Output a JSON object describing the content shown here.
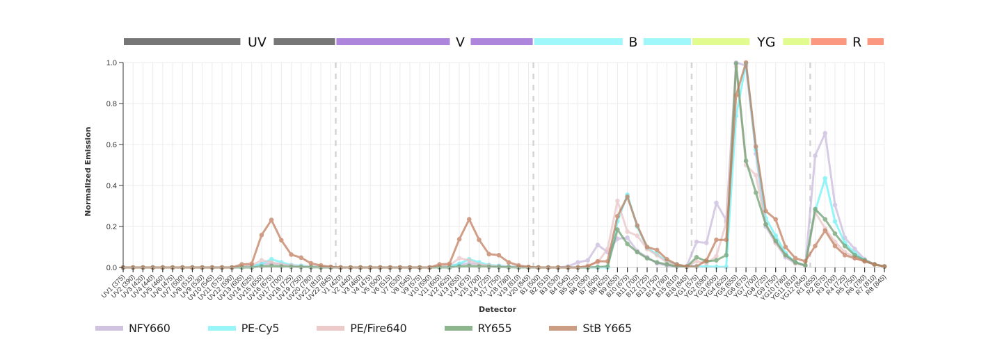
{
  "chart_data": {
    "type": "line",
    "title": "",
    "xlabel": "Detector",
    "ylabel": "Normalized Emission",
    "ylim": [
      0,
      1.0
    ],
    "yticks": [
      "0.0",
      "0.2",
      "0.4",
      "0.6",
      "0.8",
      "1.0"
    ],
    "grid": true,
    "legend_position": "bottom",
    "laser_bands": [
      {
        "label": "UV",
        "color": "#767676",
        "start": 0,
        "end": 21
      },
      {
        "label": "V",
        "color": "#ad86db",
        "start": 22,
        "end": 41
      },
      {
        "label": "B",
        "color": "#9ff6fb",
        "start": 42,
        "end": 57
      },
      {
        "label": "YG",
        "color": "#e1fb8f",
        "start": 58,
        "end": 69
      },
      {
        "label": "R",
        "color": "#fb9681",
        "start": 70,
        "end": 77
      }
    ],
    "categories": [
      "UV1 (375)",
      "UV2 (390)",
      "UV3 (420)",
      "UV4 (440)",
      "UV5 (460)",
      "UV6 (475)",
      "UV7 (500)",
      "UV8 (515)",
      "UV9 (530)",
      "UV10 (545)",
      "UV11 (575)",
      "UV12 (590)",
      "UV13 (605)",
      "UV14 (625)",
      "UV15 (655)",
      "UV16 (675)",
      "UV17 (700)",
      "UV18 (725)",
      "UV19 (750)",
      "UV20 (780)",
      "UV21 (810)",
      "UV22 (845)",
      "V1 (420)",
      "V2 (440)",
      "V3 (460)",
      "V4 (475)",
      "V5 (500)",
      "V6 (515)",
      "V7 (530)",
      "V8 (545)",
      "V9 (575)",
      "V10 (590)",
      "V11 (605)",
      "V12 (625)",
      "V13 (655)",
      "V14 (675)",
      "V15 (700)",
      "V16 (725)",
      "V17 (750)",
      "V18 (780)",
      "V19 (810)",
      "V20 (845)",
      "B1 (500)",
      "B2 (515)",
      "B3 (530)",
      "B4 (545)",
      "B5 (575)",
      "B6 (590)",
      "B7 (605)",
      "B8 (625)",
      "B9 (655)",
      "B10 (675)",
      "B11 (700)",
      "B12 (725)",
      "B13 (750)",
      "B14 (780)",
      "B15 (810)",
      "B16 (845)",
      "YG1 (575)",
      "YG2 (590)",
      "YG3 (605)",
      "YG4 (625)",
      "YG5 (655)",
      "YG6 (675)",
      "YG7 (700)",
      "YG8 (725)",
      "YG9 (750)",
      "YG10 (780)",
      "YG11 (810)",
      "YG12 (845)",
      "R1 (655)",
      "R2 (675)",
      "R3 (700)",
      "R4 (725)",
      "R5 (750)",
      "R6 (780)",
      "R7 (810)",
      "R8 (845)"
    ],
    "series": [
      {
        "name": "NFY660",
        "color": "#c8b9dc",
        "values": [
          0,
          0,
          0,
          0,
          0,
          0,
          0,
          0,
          0,
          0,
          0,
          0,
          0.005,
          0.008,
          0.015,
          0.02,
          0.015,
          0.01,
          0.008,
          0.005,
          0.003,
          0.002,
          0,
          0,
          0,
          0,
          0,
          0,
          0,
          0,
          0,
          0,
          0.005,
          0.008,
          0.015,
          0.02,
          0.015,
          0.01,
          0.008,
          0.005,
          0.003,
          0.002,
          0,
          0,
          0,
          0.005,
          0.025,
          0.035,
          0.11,
          0.075,
          0.14,
          0.145,
          0.08,
          0.05,
          0.02,
          0.01,
          0.005,
          0.005,
          0.125,
          0.12,
          0.315,
          0.23,
          1.0,
          0.985,
          0.555,
          0.2,
          0.12,
          0.05,
          0.02,
          0.01,
          0.545,
          0.655,
          0.305,
          0.145,
          0.09,
          0.04,
          0.015,
          0.005
        ]
      },
      {
        "name": "PE-Cy5",
        "color": "#6cf2f7",
        "values": [
          0,
          0,
          0,
          0,
          0,
          0,
          0,
          0,
          0,
          0,
          0,
          0,
          0.002,
          0.005,
          0.018,
          0.04,
          0.025,
          0.012,
          0.008,
          0.004,
          0.002,
          0.001,
          0,
          0,
          0,
          0,
          0,
          0,
          0,
          0,
          0,
          0,
          0.002,
          0.005,
          0.018,
          0.04,
          0.025,
          0.012,
          0.008,
          0.004,
          0.002,
          0.001,
          0,
          0,
          0,
          0,
          0,
          0,
          0,
          0,
          0.225,
          0.355,
          0.2,
          0.095,
          0.065,
          0.03,
          0.015,
          0.005,
          0.005,
          0.005,
          0.003,
          0.003,
          0.74,
          0.995,
          0.575,
          0.24,
          0.155,
          0.07,
          0.025,
          0.01,
          0.275,
          0.435,
          0.225,
          0.12,
          0.07,
          0.035,
          0.015,
          0.005
        ]
      },
      {
        "name": "PE/Fire640",
        "color": "#e8c4c4",
        "values": [
          0,
          0,
          0,
          0,
          0,
          0,
          0,
          0,
          0,
          0,
          0,
          0,
          0.005,
          0.01,
          0.035,
          0.025,
          0.015,
          0.01,
          0.005,
          0.003,
          0.002,
          0.001,
          0,
          0,
          0,
          0,
          0,
          0,
          0,
          0,
          0,
          0,
          0.005,
          0.01,
          0.045,
          0.035,
          0.015,
          0.01,
          0.005,
          0.003,
          0.002,
          0.001,
          0,
          0,
          0,
          0,
          0,
          0.01,
          0.025,
          0.09,
          0.325,
          0.175,
          0.155,
          0.09,
          0.06,
          0.025,
          0.01,
          0.005,
          0.03,
          0.02,
          0.055,
          0.22,
          0.98,
          0.5,
          0.45,
          0.21,
          0.12,
          0.06,
          0.02,
          0.01,
          0.27,
          0.19,
          0.125,
          0.075,
          0.05,
          0.03,
          0.015,
          0.005
        ]
      },
      {
        "name": "RY655",
        "color": "#6a9e6e",
        "values": [
          0,
          0,
          0,
          0,
          0,
          0,
          0,
          0,
          0,
          0,
          0,
          0,
          0,
          0,
          0.005,
          0.008,
          0.005,
          0.003,
          0.002,
          0.001,
          0,
          0,
          0,
          0,
          0,
          0,
          0,
          0,
          0,
          0,
          0,
          0,
          0,
          0,
          0.005,
          0.008,
          0.005,
          0.003,
          0.002,
          0.001,
          0,
          0,
          0,
          0,
          0,
          0,
          0,
          0,
          0.002,
          0.005,
          0.185,
          0.115,
          0.075,
          0.045,
          0.025,
          0.015,
          0.005,
          0.003,
          0.05,
          0.03,
          0.035,
          0.06,
          0.995,
          0.52,
          0.365,
          0.21,
          0.13,
          0.06,
          0.025,
          0.01,
          0.285,
          0.235,
          0.165,
          0.105,
          0.06,
          0.035,
          0.015,
          0.005
        ]
      },
      {
        "name": "StB Y665",
        "color": "#c07a5a",
        "values": [
          0,
          0,
          0,
          0,
          0,
          0,
          0,
          0,
          0,
          0,
          0,
          0,
          0.015,
          0.018,
          0.158,
          0.232,
          0.133,
          0.063,
          0.048,
          0.02,
          0.01,
          0.003,
          0,
          0,
          0,
          0,
          0,
          0,
          0,
          0,
          0,
          0,
          0.015,
          0.018,
          0.138,
          0.235,
          0.135,
          0.065,
          0.06,
          0.025,
          0.01,
          0.003,
          0,
          0,
          0,
          0,
          0,
          0.005,
          0.03,
          0.03,
          0.25,
          0.345,
          0.205,
          0.1,
          0.085,
          0.04,
          0.015,
          0.005,
          0.005,
          0.035,
          0.135,
          0.135,
          0.84,
          1.0,
          0.59,
          0.275,
          0.235,
          0.1,
          0.045,
          0.03,
          0.105,
          0.18,
          0.105,
          0.06,
          0.045,
          0.03,
          0.015,
          0.005
        ]
      }
    ]
  },
  "legend": {
    "items": [
      {
        "label": "NFY660",
        "color": "#cfc3df"
      },
      {
        "label": "PE-Cy5",
        "color": "#9af5f9"
      },
      {
        "label": "PE/Fire640",
        "color": "#eccaca"
      },
      {
        "label": "RY655",
        "color": "#8db58e"
      },
      {
        "label": "StB Y665",
        "color": "#cb9e84"
      }
    ]
  }
}
